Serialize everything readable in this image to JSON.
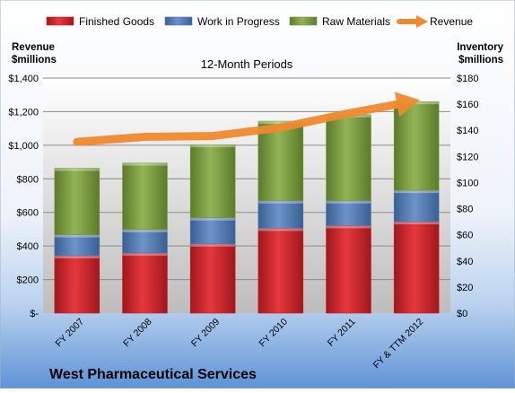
{
  "company": "West Pharmaceutical Services",
  "chart_data": {
    "type": "bar",
    "title": "12-Month Periods",
    "left_axis_label": [
      "Revenue",
      "$millions"
    ],
    "right_axis_label": [
      "Inventory",
      "$millions"
    ],
    "categories": [
      "FY 2007",
      "FY 2008",
      "FY 2009",
      "FY 2010",
      "FY 2011",
      "FY & TTM 2012"
    ],
    "stacked": true,
    "series": [
      {
        "name": "Finished Goods",
        "axis": "right",
        "type": "bar",
        "values": [
          44,
          46,
          53,
          65,
          67,
          70
        ],
        "color": "#cc2229"
      },
      {
        "name": "Work in Progress",
        "axis": "right",
        "type": "bar",
        "values": [
          16,
          18,
          20,
          21,
          19,
          24
        ],
        "color": "#4f79b6"
      },
      {
        "name": "Raw Materials",
        "axis": "right",
        "type": "bar",
        "values": [
          51,
          51,
          56,
          61,
          66,
          68
        ],
        "color": "#77993a"
      },
      {
        "name": "Revenue",
        "axis": "left",
        "type": "line",
        "values": [
          1020,
          1050,
          1055,
          1105,
          1190,
          1265
        ],
        "color": "#f0892e"
      }
    ],
    "left_axis": {
      "min": 0,
      "max": 1400,
      "step": 200,
      "tick_labels": [
        "$-",
        "$200",
        "$400",
        "$600",
        "$800",
        "$1,000",
        "$1,200",
        "$1,400"
      ]
    },
    "right_axis": {
      "min": 0,
      "max": 180,
      "step": 20,
      "tick_labels": [
        "$0",
        "$20",
        "$40",
        "$60",
        "$80",
        "$100",
        "$120",
        "$140",
        "$160",
        "$180"
      ]
    },
    "legend": "top",
    "grid": true
  }
}
